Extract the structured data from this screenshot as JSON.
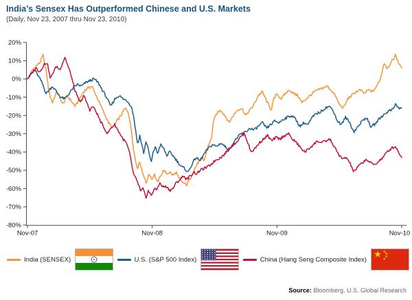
{
  "page": {
    "title": "India’s Sensex Has Outperformed Chinese and U.S. Markets",
    "subtitle": "(Daily, Nov 23, 2007 thru Nov 23, 2010)"
  },
  "source": {
    "label": "Source:",
    "text": " Bloomberg, U.S. Global Research"
  },
  "legend": [
    {
      "label": "India (SENSEX)",
      "color": "#F79539",
      "flag": "india"
    },
    {
      "label": "U.S. (S&P 500 Index)",
      "color": "#1A5E8C",
      "flag": "us"
    },
    {
      "label": "China (Hang Seng Composite Index)",
      "color": "#C3103C",
      "flag": "china"
    }
  ],
  "chart_data": {
    "type": "line",
    "title": "India’s Sensex Has Outperformed Chinese and U.S. Markets",
    "subtitle": "(Daily, Nov 23, 2007 thru Nov 23, 2010)",
    "x_unit": "months since Nov 23, 2007",
    "xlim": [
      0,
      36
    ],
    "ylim": [
      -80,
      20
    ],
    "grid": false,
    "legend_position": "bottom",
    "axis_color": "#4a4a4a",
    "label_color": "#1a1a1a",
    "x_ticks": [
      {
        "m": 0,
        "label": "Nov-07"
      },
      {
        "m": 12,
        "label": "Nov-08"
      },
      {
        "m": 24,
        "label": "Nov-09"
      },
      {
        "m": 36,
        "label": "Nov-10"
      }
    ],
    "y_ticks": [
      20,
      10,
      0,
      -10,
      -20,
      -30,
      -40,
      -50,
      -60,
      -70,
      -80
    ],
    "y_tick_suffix": "%",
    "jitter_pct": 0.75,
    "series": [
      {
        "name": "India (SENSEX)",
        "color": "#F79539",
        "points": [
          [
            0,
            0
          ],
          [
            0.4,
            4
          ],
          [
            0.8,
            7
          ],
          [
            1.2,
            9
          ],
          [
            1.5,
            13
          ],
          [
            1.8,
            4
          ],
          [
            2.1,
            -8
          ],
          [
            2.4,
            -13
          ],
          [
            2.8,
            -7
          ],
          [
            3.1,
            -10
          ],
          [
            3.4,
            -14
          ],
          [
            3.8,
            -9
          ],
          [
            4.2,
            -12
          ],
          [
            4.6,
            -15
          ],
          [
            5,
            -11
          ],
          [
            5.4,
            -7
          ],
          [
            5.8,
            -5
          ],
          [
            6.2,
            -4
          ],
          [
            6.6,
            -9
          ],
          [
            7,
            -14
          ],
          [
            7.4,
            -19
          ],
          [
            7.8,
            -24
          ],
          [
            8.2,
            -27
          ],
          [
            8.6,
            -23
          ],
          [
            9,
            -20
          ],
          [
            9.4,
            -16
          ],
          [
            9.7,
            -18
          ],
          [
            10,
            -28
          ],
          [
            10.2,
            -38
          ],
          [
            10.4,
            -45
          ],
          [
            10.6,
            -49
          ],
          [
            10.8,
            -45
          ],
          [
            11,
            -50
          ],
          [
            11.2,
            -53
          ],
          [
            11.4,
            -57
          ],
          [
            11.7,
            -52
          ],
          [
            12,
            -55
          ],
          [
            12.2,
            -52
          ],
          [
            12.5,
            -57
          ],
          [
            12.8,
            -53
          ],
          [
            13.1,
            -50
          ],
          [
            13.4,
            -52
          ],
          [
            13.7,
            -51
          ],
          [
            14,
            -53
          ],
          [
            14.3,
            -51
          ],
          [
            14.6,
            -55
          ],
          [
            15,
            -57
          ],
          [
            15.3,
            -58
          ],
          [
            15.7,
            -54
          ],
          [
            16,
            -50
          ],
          [
            16.4,
            -46
          ],
          [
            16.8,
            -43
          ],
          [
            17,
            -45
          ],
          [
            17.4,
            -36
          ],
          [
            17.7,
            -33
          ],
          [
            17.85,
            -24
          ],
          [
            18.2,
            -19
          ],
          [
            18.6,
            -17
          ],
          [
            19,
            -20
          ],
          [
            19.4,
            -24
          ],
          [
            19.8,
            -20
          ],
          [
            20.2,
            -17
          ],
          [
            20.6,
            -16
          ],
          [
            21,
            -20
          ],
          [
            21.4,
            -17
          ],
          [
            21.8,
            -14
          ],
          [
            22.2,
            -9
          ],
          [
            22.6,
            -7
          ],
          [
            23,
            -12
          ],
          [
            23.45,
            -17
          ],
          [
            23.7,
            -11
          ],
          [
            24,
            -8
          ],
          [
            24.4,
            -11
          ],
          [
            24.8,
            -8
          ],
          [
            25.2,
            -6
          ],
          [
            25.6,
            -8
          ],
          [
            26,
            -9
          ],
          [
            26.4,
            -13
          ],
          [
            26.8,
            -11
          ],
          [
            27.2,
            -9
          ],
          [
            27.6,
            -7
          ],
          [
            28,
            -6
          ],
          [
            28.4,
            -5
          ],
          [
            28.8,
            -4
          ],
          [
            29.2,
            -6
          ],
          [
            29.6,
            -9
          ],
          [
            30,
            -14
          ],
          [
            30.4,
            -16
          ],
          [
            30.8,
            -11
          ],
          [
            31.2,
            -9
          ],
          [
            31.6,
            -7
          ],
          [
            32,
            -6
          ],
          [
            32.4,
            -8
          ],
          [
            32.8,
            -6
          ],
          [
            33.2,
            -7
          ],
          [
            33.6,
            -4
          ],
          [
            34,
            1
          ],
          [
            34.3,
            9
          ],
          [
            34.6,
            6
          ],
          [
            35,
            9
          ],
          [
            35.4,
            13
          ],
          [
            35.7,
            9
          ],
          [
            36,
            6
          ]
        ]
      },
      {
        "name": "U.S. (S&P 500 Index)",
        "color": "#1A5E8C",
        "points": [
          [
            0,
            0
          ],
          [
            0.4,
            3
          ],
          [
            0.7,
            5
          ],
          [
            1,
            2
          ],
          [
            1.4,
            -2
          ],
          [
            1.8,
            -8
          ],
          [
            2.1,
            -6
          ],
          [
            2.4,
            -4
          ],
          [
            2.8,
            -7
          ],
          [
            3.2,
            -10
          ],
          [
            3.6,
            -11
          ],
          [
            4,
            -8
          ],
          [
            4.4,
            -5
          ],
          [
            4.8,
            -3
          ],
          [
            5.2,
            -4
          ],
          [
            5.6,
            -2
          ],
          [
            6,
            -1
          ],
          [
            6.4,
            0
          ],
          [
            6.8,
            -2
          ],
          [
            7.2,
            -6
          ],
          [
            7.6,
            -10
          ],
          [
            8,
            -15
          ],
          [
            8.4,
            -11
          ],
          [
            8.8,
            -9
          ],
          [
            9.2,
            -11
          ],
          [
            9.6,
            -12
          ],
          [
            10,
            -15
          ],
          [
            10.2,
            -20
          ],
          [
            10.4,
            -28
          ],
          [
            10.6,
            -36
          ],
          [
            10.8,
            -31
          ],
          [
            11,
            -36
          ],
          [
            11.2,
            -41
          ],
          [
            11.4,
            -34
          ],
          [
            11.6,
            -38
          ],
          [
            11.9,
            -46
          ],
          [
            12.1,
            -40
          ],
          [
            12.3,
            -37
          ],
          [
            12.5,
            -41
          ],
          [
            12.8,
            -36
          ],
          [
            13.1,
            -38
          ],
          [
            13.4,
            -42
          ],
          [
            13.7,
            -40
          ],
          [
            14,
            -42
          ],
          [
            14.4,
            -45
          ],
          [
            14.8,
            -48
          ],
          [
            15.1,
            -49
          ],
          [
            15.45,
            -51
          ],
          [
            15.8,
            -47
          ],
          [
            16.2,
            -43
          ],
          [
            16.6,
            -45
          ],
          [
            17,
            -41
          ],
          [
            17.4,
            -38
          ],
          [
            17.8,
            -36
          ],
          [
            18.2,
            -37
          ],
          [
            18.6,
            -35
          ],
          [
            19,
            -37
          ],
          [
            19.4,
            -39
          ],
          [
            19.8,
            -35
          ],
          [
            20.2,
            -32
          ],
          [
            20.6,
            -30
          ],
          [
            21,
            -29
          ],
          [
            21.4,
            -27
          ],
          [
            21.8,
            -28
          ],
          [
            22.2,
            -26
          ],
          [
            22.6,
            -24
          ],
          [
            23,
            -27
          ],
          [
            23.4,
            -25
          ],
          [
            23.8,
            -23
          ],
          [
            24.2,
            -24
          ],
          [
            24.6,
            -22
          ],
          [
            25,
            -21
          ],
          [
            25.4,
            -20
          ],
          [
            25.8,
            -22
          ],
          [
            26.2,
            -26
          ],
          [
            26.6,
            -24
          ],
          [
            27,
            -25
          ],
          [
            27.4,
            -21
          ],
          [
            27.8,
            -19
          ],
          [
            28.2,
            -18
          ],
          [
            28.6,
            -16
          ],
          [
            29,
            -15
          ],
          [
            29.4,
            -17
          ],
          [
            29.8,
            -23
          ],
          [
            30.2,
            -25
          ],
          [
            30.6,
            -21
          ],
          [
            31,
            -24
          ],
          [
            31.4,
            -29
          ],
          [
            31.8,
            -26
          ],
          [
            32.2,
            -23
          ],
          [
            32.6,
            -21
          ],
          [
            33,
            -26
          ],
          [
            33.4,
            -25
          ],
          [
            33.8,
            -22
          ],
          [
            34.2,
            -20
          ],
          [
            34.6,
            -18
          ],
          [
            35,
            -17
          ],
          [
            35.4,
            -14
          ],
          [
            35.7,
            -16
          ],
          [
            36,
            -16
          ]
        ]
      },
      {
        "name": "China (Hang Seng Composite Index)",
        "color": "#C3103C",
        "points": [
          [
            0,
            0
          ],
          [
            0.4,
            3
          ],
          [
            0.8,
            6
          ],
          [
            1.2,
            4
          ],
          [
            1.6,
            8
          ],
          [
            1.9,
            9
          ],
          [
            2.2,
            0
          ],
          [
            2.5,
            4
          ],
          [
            2.8,
            7
          ],
          [
            3.1,
            5
          ],
          [
            3.4,
            9
          ],
          [
            3.6,
            12
          ],
          [
            3.9,
            7
          ],
          [
            4.2,
            2
          ],
          [
            4.5,
            -5
          ],
          [
            4.8,
            -10
          ],
          [
            5.1,
            -13
          ],
          [
            5.4,
            -9
          ],
          [
            5.7,
            -13
          ],
          [
            6,
            -17
          ],
          [
            6.3,
            -15
          ],
          [
            6.7,
            -19
          ],
          [
            7,
            -23
          ],
          [
            7.4,
            -27
          ],
          [
            7.7,
            -30
          ],
          [
            8,
            -27
          ],
          [
            8.4,
            -25
          ],
          [
            8.8,
            -29
          ],
          [
            9.2,
            -33
          ],
          [
            9.5,
            -35
          ],
          [
            9.8,
            -40
          ],
          [
            10,
            -46
          ],
          [
            10.2,
            -52
          ],
          [
            10.45,
            -55
          ],
          [
            10.7,
            -58
          ],
          [
            10.9,
            -62
          ],
          [
            11.1,
            -60
          ],
          [
            11.4,
            -65
          ],
          [
            11.6,
            -61
          ],
          [
            11.9,
            -64
          ],
          [
            12.2,
            -60
          ],
          [
            12.4,
            -61
          ],
          [
            12.7,
            -57
          ],
          [
            13,
            -59
          ],
          [
            13.4,
            -59
          ],
          [
            13.7,
            -61
          ],
          [
            14,
            -60
          ],
          [
            14.3,
            -57
          ],
          [
            14.7,
            -55
          ],
          [
            15,
            -53
          ],
          [
            15.3,
            -55
          ],
          [
            15.7,
            -53
          ],
          [
            16,
            -51
          ],
          [
            16.3,
            -52
          ],
          [
            16.6,
            -50
          ],
          [
            17,
            -49
          ],
          [
            17.4,
            -48
          ],
          [
            17.8,
            -46
          ],
          [
            18.2,
            -44
          ],
          [
            18.6,
            -43
          ],
          [
            19,
            -41
          ],
          [
            19.4,
            -38
          ],
          [
            19.8,
            -36
          ],
          [
            20.2,
            -34
          ],
          [
            20.6,
            -31
          ],
          [
            20.9,
            -30
          ],
          [
            21.2,
            -35
          ],
          [
            21.5,
            -40
          ],
          [
            21.9,
            -38
          ],
          [
            22.3,
            -35
          ],
          [
            22.7,
            -33
          ],
          [
            23.1,
            -31
          ],
          [
            23.5,
            -34
          ],
          [
            23.9,
            -32
          ],
          [
            24.3,
            -33
          ],
          [
            24.7,
            -31
          ],
          [
            25.1,
            -30
          ],
          [
            25.5,
            -33
          ],
          [
            25.9,
            -35
          ],
          [
            26.3,
            -38
          ],
          [
            26.7,
            -40
          ],
          [
            27.1,
            -38
          ],
          [
            27.5,
            -36
          ],
          [
            27.9,
            -34
          ],
          [
            28.3,
            -35
          ],
          [
            28.7,
            -34
          ],
          [
            29.1,
            -33
          ],
          [
            29.5,
            -37
          ],
          [
            29.9,
            -41
          ],
          [
            30.3,
            -44
          ],
          [
            30.7,
            -43
          ],
          [
            31.1,
            -47
          ],
          [
            31.4,
            -51
          ],
          [
            31.8,
            -48
          ],
          [
            32.2,
            -46
          ],
          [
            32.6,
            -44
          ],
          [
            33,
            -46
          ],
          [
            33.4,
            -47
          ],
          [
            33.8,
            -45
          ],
          [
            34.2,
            -43
          ],
          [
            34.6,
            -40
          ],
          [
            35,
            -38
          ],
          [
            35.4,
            -37
          ],
          [
            35.7,
            -40
          ],
          [
            36,
            -43
          ]
        ]
      }
    ]
  }
}
